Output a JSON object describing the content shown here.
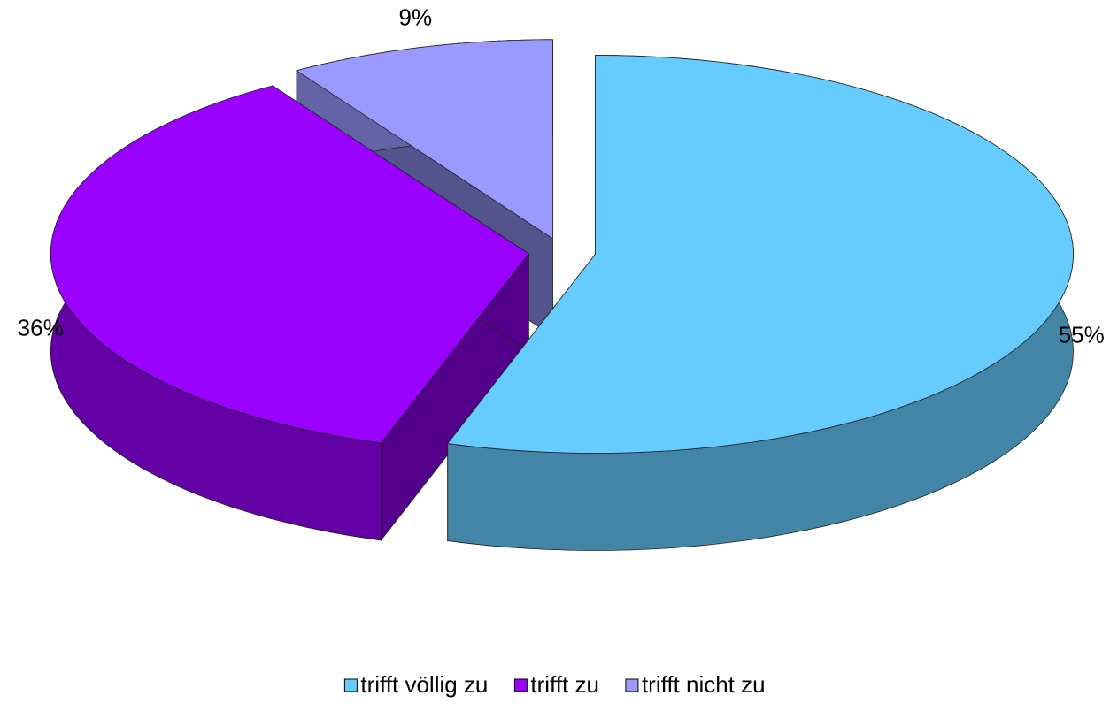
{
  "chart_data": {
    "type": "pie3d",
    "categories": [
      "trifft völlig zu",
      "trifft zu",
      "trifft nicht zu"
    ],
    "values": [
      55,
      36,
      9
    ],
    "value_labels": [
      "55%",
      "36%",
      "9%"
    ],
    "colors": [
      "#66ccff",
      "#9900ff",
      "#9999ff"
    ],
    "legend": "bottom"
  }
}
